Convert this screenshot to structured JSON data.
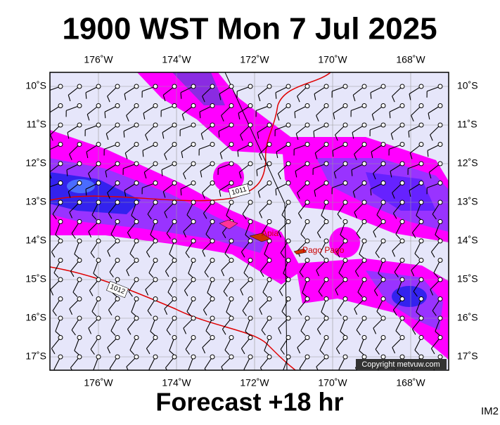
{
  "header": {
    "title": "1900 WST Mon 7 Jul 2025"
  },
  "footer": {
    "forecast": "Forecast +18 hr",
    "image_id": "IM2"
  },
  "map": {
    "longitude_labels": [
      "176˚W",
      "174˚W",
      "172˚W",
      "170˚W",
      "168˚W"
    ],
    "latitude_labels": [
      "10˚S",
      "11˚S",
      "12˚S",
      "13˚S",
      "14˚S",
      "15˚S",
      "16˚S",
      "17˚S"
    ],
    "places": [
      "Apia",
      "Pago Pago"
    ],
    "isobar_labels": [
      "1011",
      "1012"
    ],
    "copyright": "Copyright metvuw.com"
  }
}
